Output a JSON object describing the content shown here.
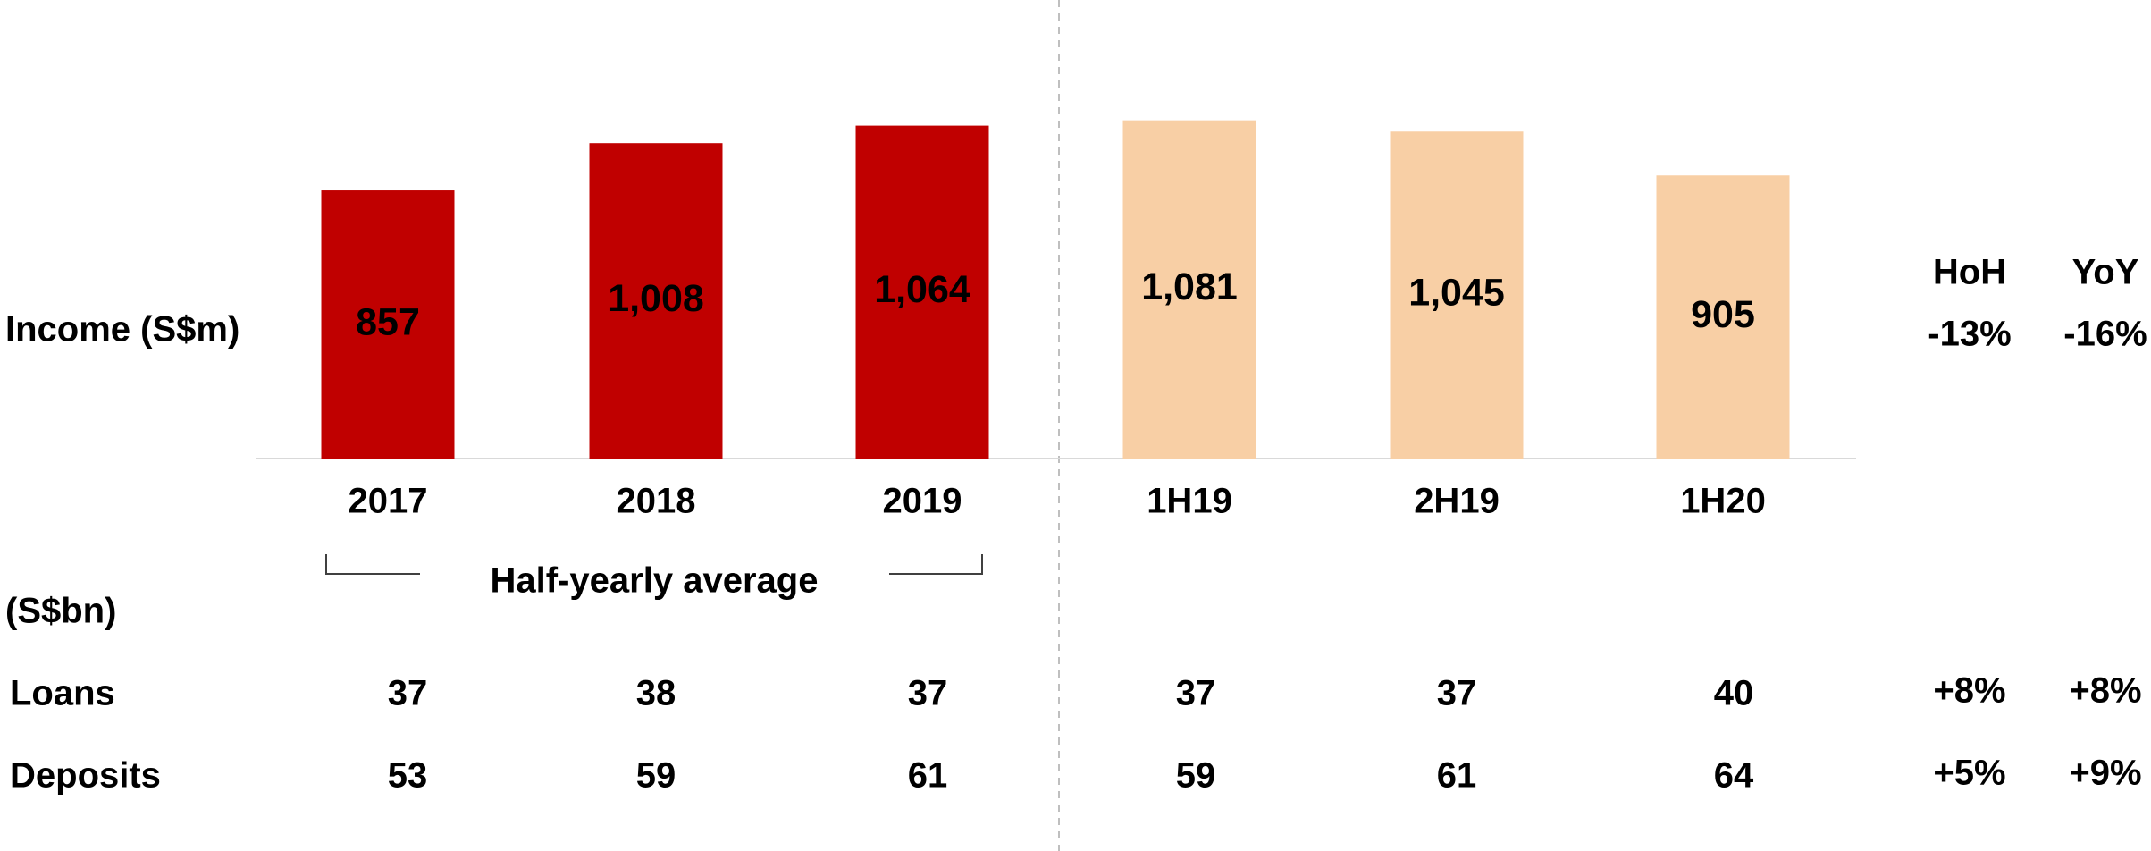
{
  "chart_data": {
    "type": "bar",
    "title": "Income (S$m)",
    "categories": [
      "2017",
      "2018",
      "2019",
      "1H19",
      "2H19",
      "1H20"
    ],
    "values": [
      857,
      1008,
      1064,
      1081,
      1045,
      905
    ],
    "value_labels": [
      "857",
      "1,008",
      "1,064",
      "1,081",
      "1,045",
      "905"
    ],
    "colors": [
      "#c00000",
      "#c00000",
      "#c00000",
      "#f8cfa5",
      "#f8cfa5",
      "#f8cfa5"
    ],
    "annotation": "Half-yearly average"
  },
  "table": {
    "unit": "(S$bn)",
    "rows": [
      {
        "label": "Loans",
        "values": [
          37,
          38,
          37,
          37,
          37,
          40
        ]
      },
      {
        "label": "Deposits",
        "values": [
          53,
          59,
          61,
          59,
          61,
          64
        ]
      }
    ]
  },
  "change": {
    "headers": [
      "HoH",
      "YoY"
    ],
    "income": [
      "-13%",
      "-16%"
    ],
    "rows": [
      [
        "+8%",
        "+8%"
      ],
      [
        "+5%",
        "+9%"
      ]
    ]
  }
}
